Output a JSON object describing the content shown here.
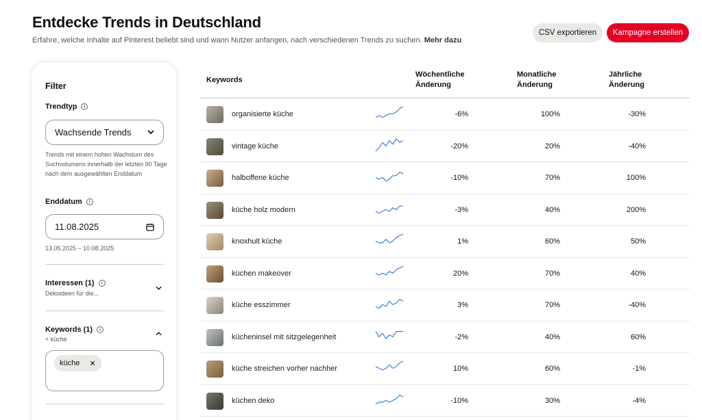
{
  "header": {
    "title": "Entdecke Trends in Deutschland",
    "subtitle": "Erfahre, welche Inhalte auf Pinterest beliebt sind und wann Nutzer anfangen, nach verschiedenen Trends zu suchen.",
    "more_link": "Mehr dazu",
    "csv_button": "CSV exportieren",
    "campaign_button": "Kampagne erstellen"
  },
  "filter": {
    "title": "Filter",
    "trend_type_label": "Trendtyp",
    "trend_type_value": "Wachsende Trends",
    "trend_type_help": "Trends mit einem hohen Wachstum des Suchvolumens innerhalb der letzten 90 Tage nach dem ausgewählten Enddatum",
    "end_date_label": "Enddatum",
    "end_date_value": "11.08.2025",
    "date_range": "13.05.2025 – 10.08.2025",
    "interests_label": "Interessen (1)",
    "interests_sub": "Dekoideen für die...",
    "keywords_label": "Keywords (1)",
    "keywords_sub": "+ küche",
    "keyword_chip": "küche"
  },
  "table": {
    "headers": {
      "keywords": "Keywords",
      "weekly": "Wöchentliche Änderung",
      "monthly": "Monatliche Änderung",
      "yearly": "Jährliche Änderung"
    },
    "rows": [
      {
        "keyword": "organisierte küche",
        "weekly": "-6%",
        "monthly": "100%",
        "yearly": "-30%",
        "spark": [
          6,
          5,
          6,
          5,
          4,
          4,
          3,
          1,
          0
        ]
      },
      {
        "keyword": "vintage küche",
        "weekly": "-20%",
        "monthly": "20%",
        "yearly": "-40%",
        "spark": [
          7,
          5,
          2,
          4,
          1,
          3,
          0,
          2,
          1
        ]
      },
      {
        "keyword": "halboffene küche",
        "weekly": "-10%",
        "monthly": "70%",
        "yearly": "100%",
        "spark": [
          4,
          5,
          4,
          6,
          5,
          3,
          3,
          1,
          2
        ]
      },
      {
        "keyword": "küche holz modern",
        "weekly": "-3%",
        "monthly": "40%",
        "yearly": "200%",
        "spark": [
          5,
          6,
          5,
          4,
          5,
          3,
          4,
          2,
          2
        ]
      },
      {
        "keyword": "knoxhult küche",
        "weekly": "1%",
        "monthly": "60%",
        "yearly": "50%",
        "spark": [
          4,
          5,
          5,
          3,
          5,
          4,
          2,
          1,
          0
        ]
      },
      {
        "keyword": "küchen makeover",
        "weekly": "20%",
        "monthly": "70%",
        "yearly": "40%",
        "spark": [
          4,
          5,
          4,
          5,
          3,
          4,
          2,
          1,
          0
        ]
      },
      {
        "keyword": "küche esszimmer",
        "weekly": "3%",
        "monthly": "70%",
        "yearly": "-40%",
        "spark": [
          5,
          6,
          4,
          5,
          2,
          4,
          3,
          1,
          2
        ]
      },
      {
        "keyword": "kücheninsel mit sitzgelegenheit",
        "weekly": "-2%",
        "monthly": "40%",
        "yearly": "60%",
        "spark": [
          1,
          4,
          2,
          5,
          3,
          4,
          1,
          1,
          1
        ]
      },
      {
        "keyword": "küche streichen vorher nachher",
        "weekly": "10%",
        "monthly": "60%",
        "yearly": "-1%",
        "spark": [
          3,
          4,
          5,
          4,
          2,
          4,
          3,
          1,
          0
        ]
      },
      {
        "keyword": "küchen deko",
        "weekly": "-10%",
        "monthly": "30%",
        "yearly": "-4%",
        "spark": [
          6,
          5,
          5,
          4,
          5,
          4,
          3,
          1,
          2
        ]
      }
    ]
  },
  "colors": {
    "accent": "#e60023",
    "spark": "#3b7ddd"
  }
}
